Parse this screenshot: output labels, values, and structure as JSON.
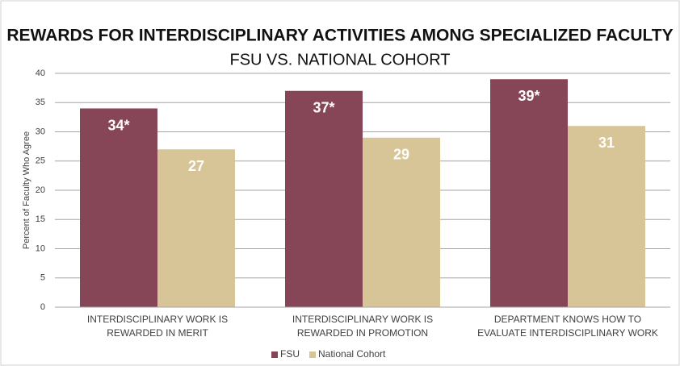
{
  "chart_data": {
    "type": "bar",
    "title": "REWARDS FOR INTERDISCIPLINARY ACTIVITIES AMONG SPECIALIZED FACULTY",
    "subtitle": "FSU VS. NATIONAL COHORT",
    "y_label": "Percent of Faculty Who Agree",
    "categories": [
      [
        "INTERDISCIPLINARY WORK IS",
        "REWARDED IN MERIT"
      ],
      [
        "INTERDISCIPLINARY WORK IS",
        "REWARDED IN PROMOTION"
      ],
      [
        "DEPARTMENT KNOWS HOW TO",
        "EVALUATE INTERDISCIPLINARY WORK"
      ]
    ],
    "series": [
      {
        "name": "FSU",
        "color": "#874657",
        "values": [
          34,
          37,
          39
        ],
        "value_labels": [
          "34*",
          "37*",
          "39*"
        ]
      },
      {
        "name": "National Cohort",
        "color": "#d8c597",
        "values": [
          27,
          29,
          31
        ]
      }
    ],
    "ylim": [
      0,
      40
    ],
    "yticks": [
      0,
      5,
      10,
      15,
      20,
      25,
      30,
      35,
      40
    ],
    "grid": true,
    "legend": "bottom"
  }
}
